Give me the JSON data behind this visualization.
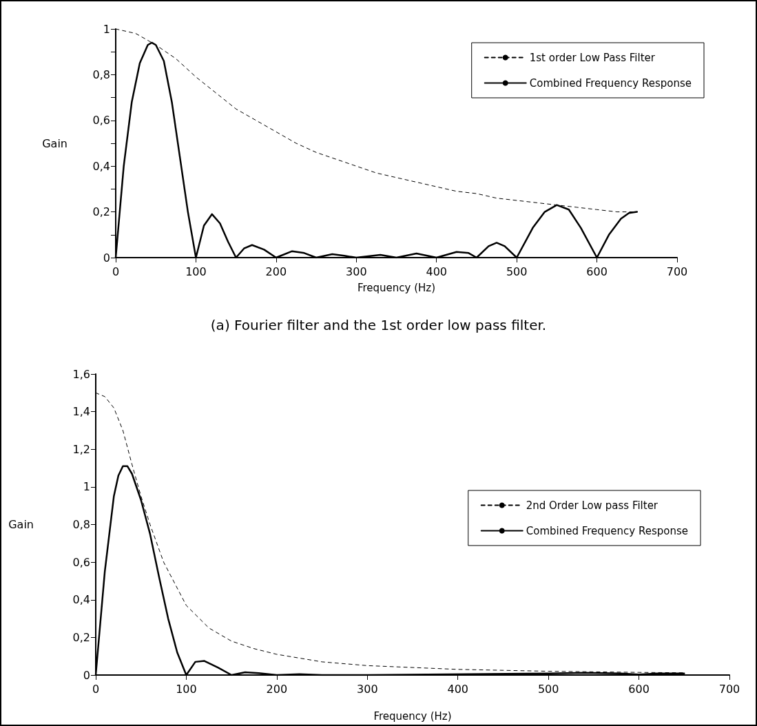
{
  "chart_data": [
    {
      "type": "line",
      "xlabel": "Frequency (Hz)",
      "ylabel": "Gain",
      "xlim": [
        0,
        700
      ],
      "xticks": [
        0,
        100,
        200,
        300,
        400,
        500,
        600,
        700
      ],
      "ylim": [
        0,
        1
      ],
      "yticks": [
        {
          "value": 0,
          "label": "0"
        },
        {
          "value": 0.1,
          "label": null
        },
        {
          "value": 0.2,
          "label": "0,2"
        },
        {
          "value": 0.3,
          "label": null
        },
        {
          "value": 0.4,
          "label": "0,4"
        },
        {
          "value": 0.5,
          "label": null
        },
        {
          "value": 0.6,
          "label": "0,6"
        },
        {
          "value": 0.7,
          "label": null
        },
        {
          "value": 0.8,
          "label": "0,8"
        },
        {
          "value": 0.9,
          "label": null
        },
        {
          "value": 1,
          "label": "1"
        }
      ],
      "grid": false,
      "legend": "top right",
      "marker": "none",
      "annotations": [
        "(a) Fourier filter and the 1st order low pass filter."
      ],
      "series": [
        {
          "name": "1st order Low Pass Filter",
          "color": "#000000",
          "line_style": "dashed",
          "x": [
            0,
            25,
            50,
            75,
            100,
            125,
            150,
            175,
            200,
            225,
            250,
            275,
            300,
            325,
            350,
            375,
            400,
            425,
            450,
            475,
            500,
            525,
            550,
            575,
            600,
            625,
            650
          ],
          "values": [
            1,
            0.98,
            0.93,
            0.87,
            0.79,
            0.72,
            0.65,
            0.6,
            0.55,
            0.5,
            0.46,
            0.43,
            0.4,
            0.37,
            0.35,
            0.33,
            0.31,
            0.29,
            0.28,
            0.26,
            0.25,
            0.24,
            0.23,
            0.22,
            0.21,
            0.2,
            0.2
          ]
        },
        {
          "name": "Combined Frequency Response",
          "color": "#000000",
          "line_style": "solid",
          "x": [
            0,
            10,
            20,
            30,
            40,
            45,
            50,
            60,
            70,
            80,
            90,
            100,
            110,
            120,
            130,
            140,
            150,
            160,
            170,
            185,
            200,
            220,
            235,
            250,
            270,
            285,
            300,
            330,
            350,
            375,
            400,
            425,
            440,
            450,
            465,
            475,
            485,
            500,
            520,
            535,
            550,
            565,
            580,
            600,
            615,
            630,
            640,
            650
          ],
          "values": [
            0,
            0.4,
            0.68,
            0.85,
            0.93,
            0.94,
            0.93,
            0.86,
            0.68,
            0.44,
            0.2,
            0,
            0.14,
            0.19,
            0.15,
            0.07,
            0,
            0.04,
            0.055,
            0.035,
            0,
            0.028,
            0.02,
            0,
            0.015,
            0.008,
            0,
            0.012,
            0,
            0.018,
            0,
            0.025,
            0.02,
            0,
            0.05,
            0.065,
            0.05,
            0,
            0.13,
            0.2,
            0.23,
            0.21,
            0.13,
            0,
            0.1,
            0.17,
            0.195,
            0.2
          ]
        }
      ]
    },
    {
      "type": "line",
      "xlabel": "Frequency (Hz)",
      "ylabel": "Gain",
      "xlim": [
        0,
        700
      ],
      "xticks": [
        0,
        100,
        200,
        300,
        400,
        500,
        600,
        700
      ],
      "ylim": [
        0,
        1.6
      ],
      "yticks": [
        {
          "value": 0,
          "label": "0"
        },
        {
          "value": 0.2,
          "label": "0,2"
        },
        {
          "value": 0.4,
          "label": "0,4"
        },
        {
          "value": 0.6,
          "label": "0,6"
        },
        {
          "value": 0.8,
          "label": "0,8"
        },
        {
          "value": 1,
          "label": "1"
        },
        {
          "value": 1.2,
          "label": "1,2"
        },
        {
          "value": 1.4,
          "label": "1,4"
        },
        {
          "value": 1.6,
          "label": "1,6"
        }
      ],
      "grid": false,
      "legend": "right",
      "marker": "none",
      "series": [
        {
          "name": "2nd Order Low pass Filter",
          "color": "#000000",
          "line_style": "dashed",
          "x": [
            0,
            10,
            20,
            30,
            40,
            50,
            60,
            75,
            100,
            125,
            150,
            175,
            200,
            250,
            300,
            350,
            400,
            450,
            500,
            550,
            600,
            650
          ],
          "values": [
            1.5,
            1.48,
            1.42,
            1.3,
            1.12,
            0.95,
            0.8,
            0.6,
            0.37,
            0.25,
            0.18,
            0.14,
            0.11,
            0.07,
            0.05,
            0.04,
            0.03,
            0.025,
            0.02,
            0.017,
            0.014,
            0.012
          ]
        },
        {
          "name": "Combined Frequency Response",
          "color": "#000000",
          "line_style": "solid",
          "x": [
            0,
            10,
            20,
            25,
            30,
            35,
            40,
            50,
            60,
            70,
            80,
            90,
            100,
            110,
            120,
            135,
            150,
            165,
            180,
            200,
            225,
            250,
            300,
            500,
            540,
            580,
            600,
            620,
            650
          ],
          "values": [
            0,
            0.55,
            0.95,
            1.06,
            1.11,
            1.11,
            1.07,
            0.93,
            0.75,
            0.52,
            0.3,
            0.12,
            0,
            0.07,
            0.075,
            0.04,
            0,
            0.015,
            0.01,
            0,
            0.005,
            0,
            0,
            0.008,
            0.012,
            0.008,
            0.003,
            0.008,
            0.008
          ]
        }
      ]
    }
  ]
}
